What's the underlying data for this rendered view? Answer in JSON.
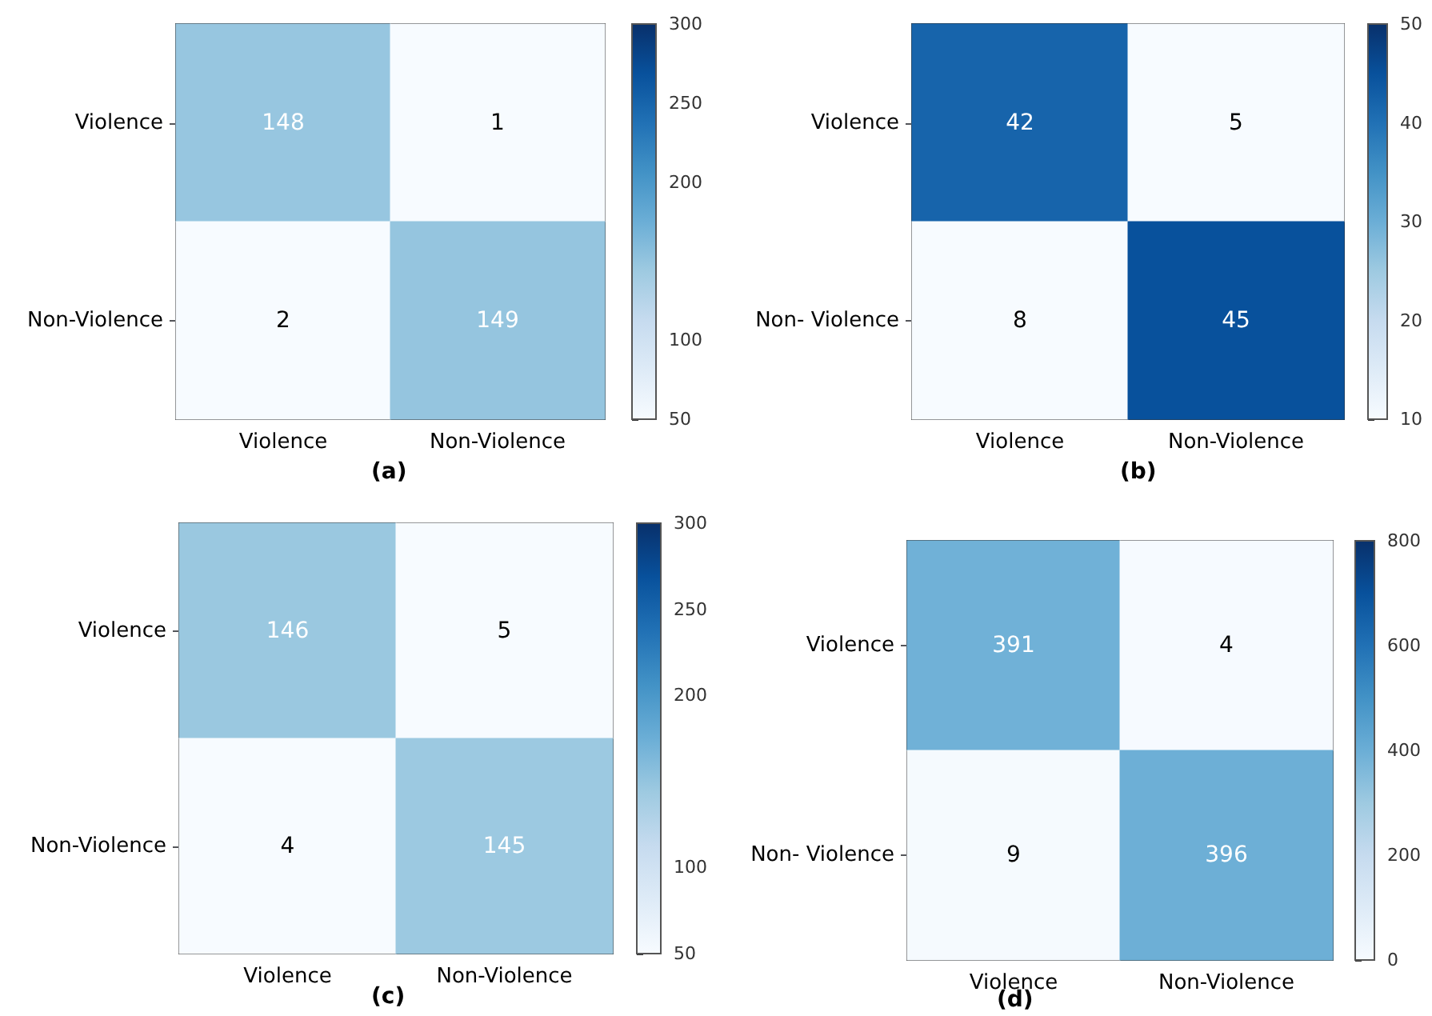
{
  "chart_data": [
    {
      "type": "heatmap",
      "categories": [
        "Violence",
        "Non-Violence"
      ],
      "y_categories": [
        "Violence",
        "Non-Violence"
      ],
      "cells": [
        [
          148,
          1
        ],
        [
          2,
          149
        ]
      ],
      "clim": [
        50,
        300
      ],
      "cticks": [
        50,
        100,
        200,
        250,
        300
      ],
      "data_labels": true,
      "annotations": [
        "(a)"
      ]
    },
    {
      "type": "heatmap",
      "categories": [
        "Violence",
        "Non-Violence"
      ],
      "y_categories": [
        "Violence",
        "Non- Violence"
      ],
      "cells": [
        [
          42,
          5
        ],
        [
          8,
          45
        ]
      ],
      "clim": [
        10,
        50
      ],
      "cticks": [
        10,
        20,
        30,
        40,
        50
      ],
      "data_labels": true,
      "annotations": [
        "(b)"
      ]
    },
    {
      "type": "heatmap",
      "categories": [
        "Violence",
        "Non-Violence"
      ],
      "y_categories": [
        "Violence",
        "Non-Violence"
      ],
      "cells": [
        [
          146,
          5
        ],
        [
          4,
          145
        ]
      ],
      "clim": [
        50,
        300
      ],
      "cticks": [
        50,
        100,
        200,
        250,
        300
      ],
      "data_labels": true,
      "annotations": [
        "(c)"
      ]
    },
    {
      "type": "heatmap",
      "categories": [
        "Violence",
        "Non-Violence"
      ],
      "y_categories": [
        "Violence",
        "Non- Violence"
      ],
      "cells": [
        [
          391,
          4
        ],
        [
          9,
          396
        ]
      ],
      "clim": [
        0,
        800
      ],
      "cticks": [
        0,
        200,
        400,
        600,
        800
      ],
      "data_labels": true,
      "annotations": [
        "(d)"
      ]
    }
  ]
}
